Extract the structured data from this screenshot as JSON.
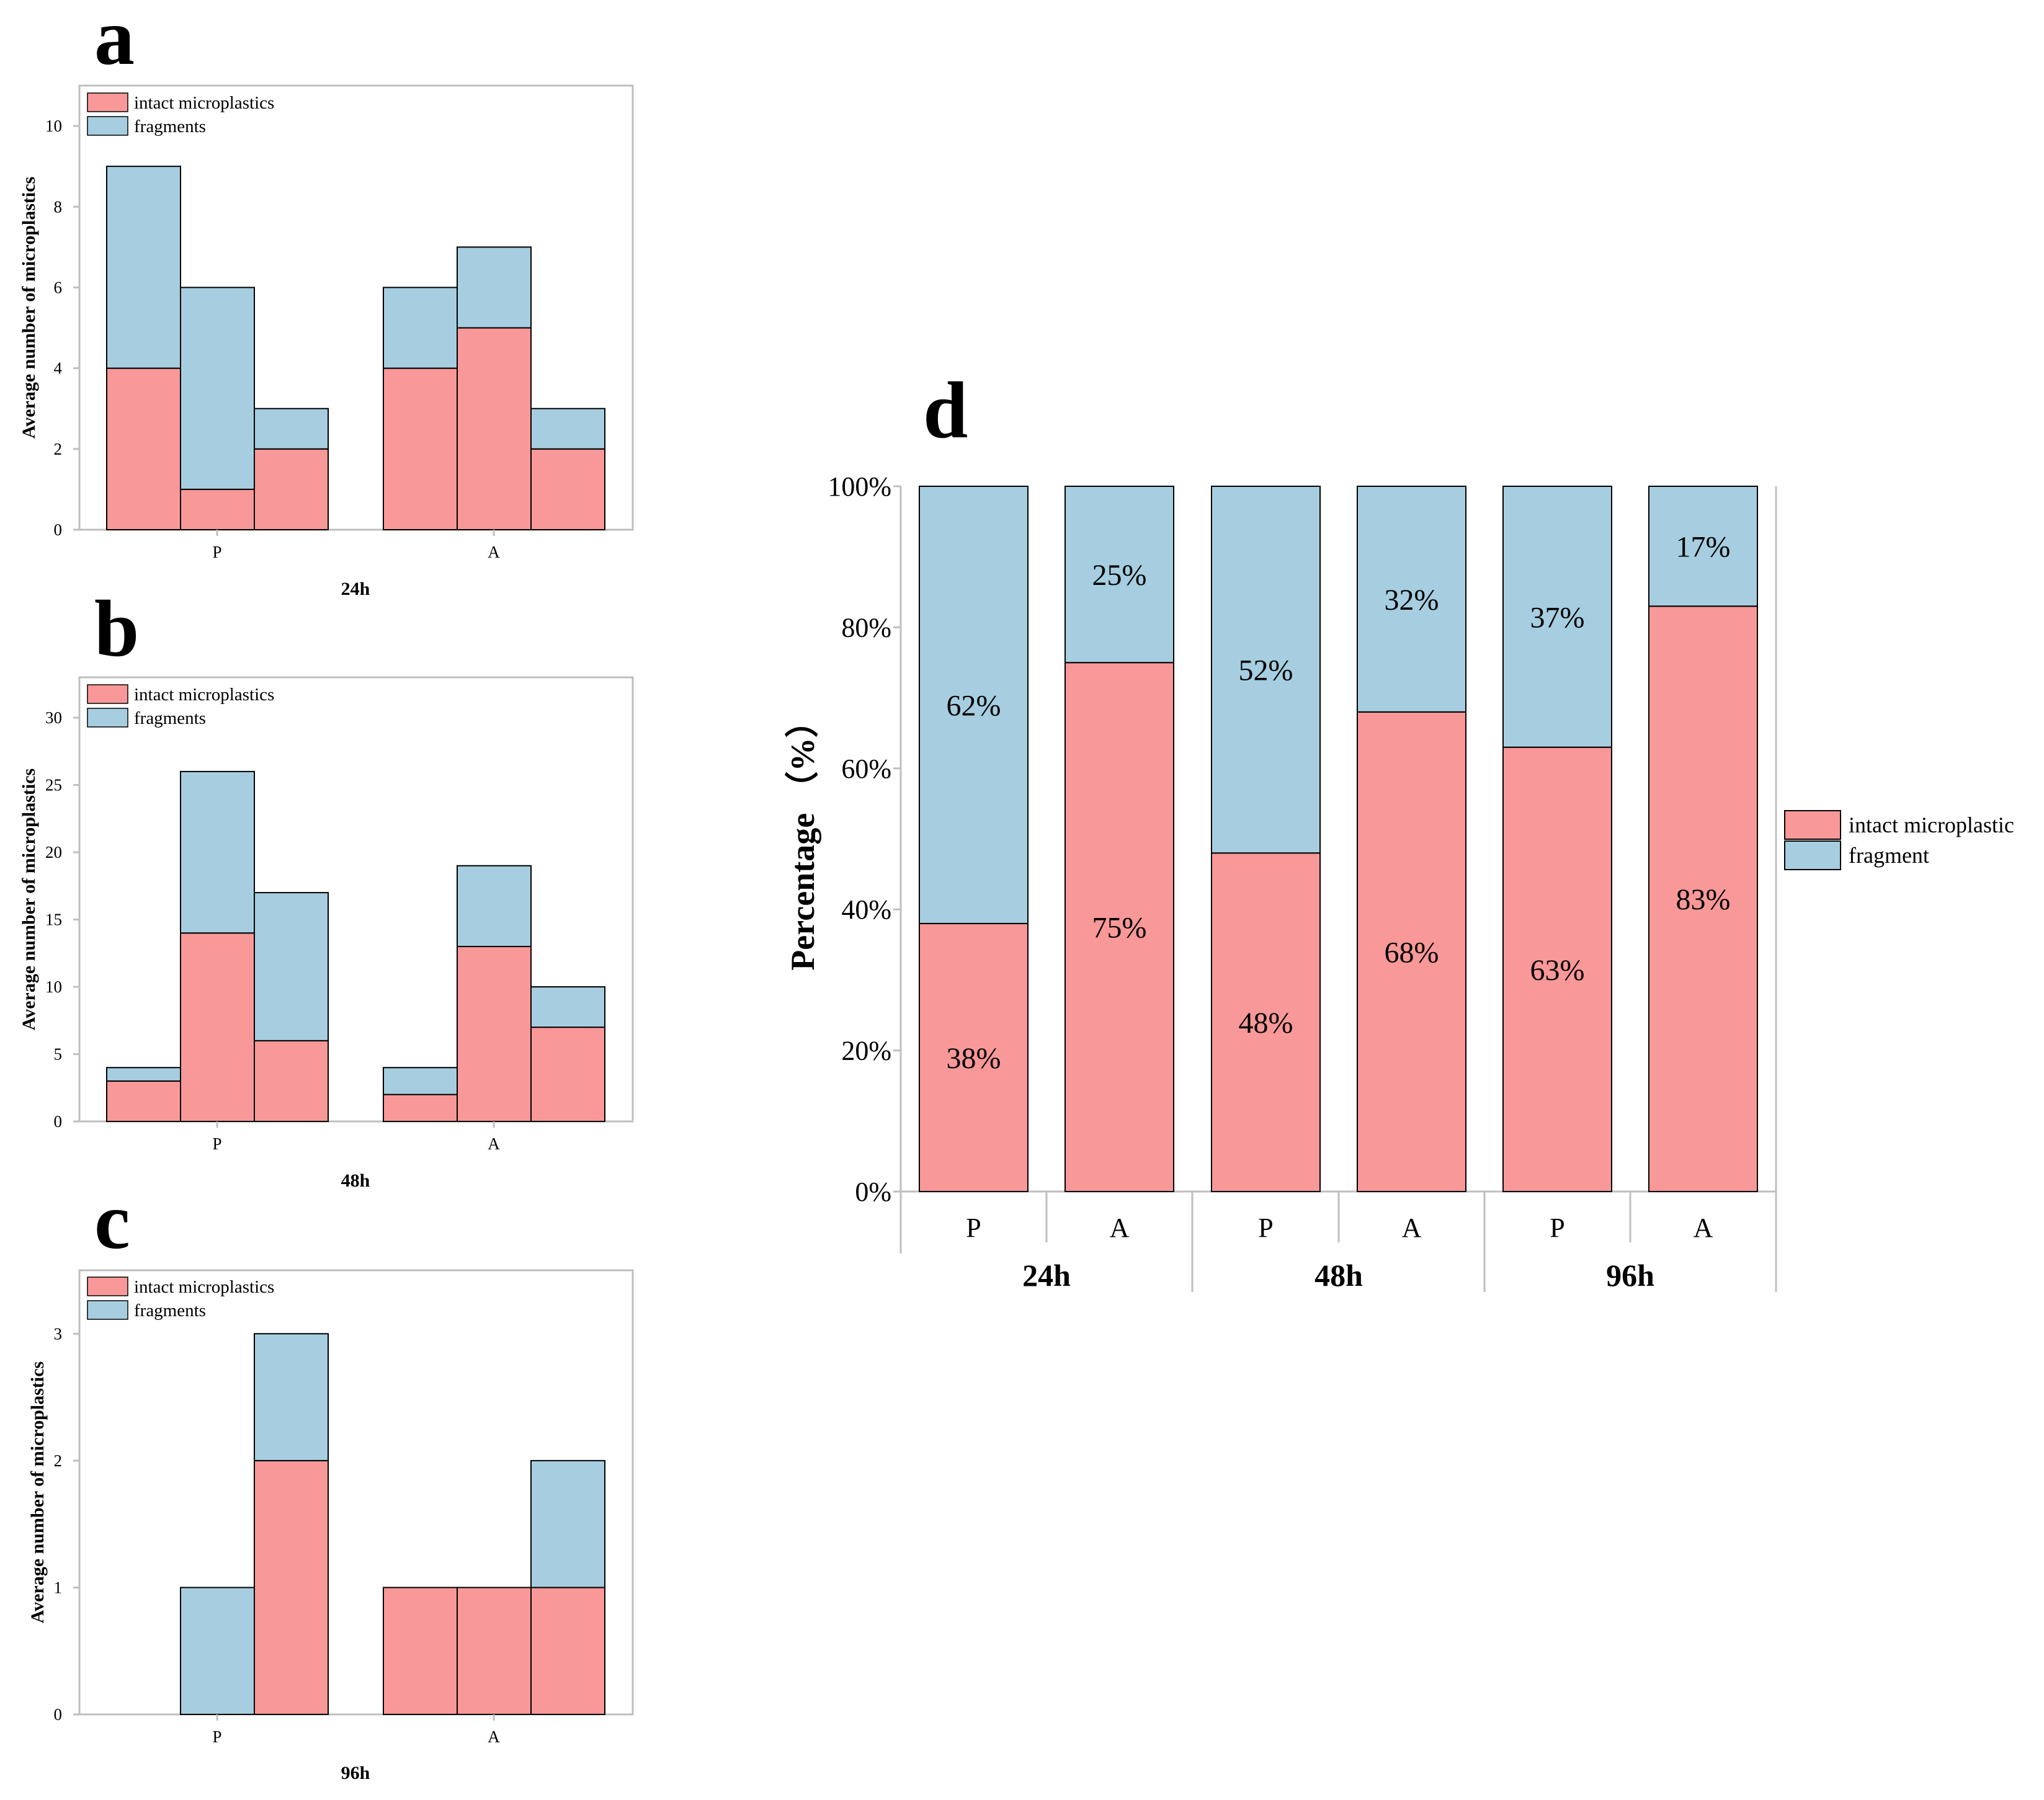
{
  "colors": {
    "intact": "#F99898",
    "fragment": "#A6CEE0",
    "stroke": "#000000",
    "frame": "#BFBFBF"
  },
  "chart_data": [
    {
      "panel": "a",
      "type": "bar",
      "stacked": true,
      "groups": [
        "P",
        "A"
      ],
      "bars_per_group": 3,
      "xlabel": "24h",
      "ylabel": "Average number of microplastics",
      "ylim": [
        0,
        11
      ],
      "yticks": [
        0,
        2,
        4,
        6,
        8,
        10
      ],
      "legend": [
        "intact microplastics",
        "fragments"
      ],
      "series": [
        {
          "name": "intact microplastics",
          "values": [
            4,
            1,
            2,
            4,
            5,
            2
          ]
        },
        {
          "name": "fragments",
          "values": [
            5,
            5,
            1,
            2,
            2,
            1
          ]
        }
      ]
    },
    {
      "panel": "b",
      "type": "bar",
      "stacked": true,
      "groups": [
        "P",
        "A"
      ],
      "bars_per_group": 3,
      "xlabel": "48h",
      "ylabel": "Average number of microplastics",
      "ylim": [
        0,
        33
      ],
      "yticks": [
        0,
        5,
        10,
        15,
        20,
        25,
        30
      ],
      "legend": [
        "intact microplastics",
        "fragments"
      ],
      "series": [
        {
          "name": "intact microplastics",
          "values": [
            3,
            14,
            6,
            2,
            13,
            7
          ]
        },
        {
          "name": "fragments",
          "values": [
            1,
            12,
            11,
            2,
            6,
            3
          ]
        }
      ]
    },
    {
      "panel": "c",
      "type": "bar",
      "stacked": true,
      "groups": [
        "P",
        "A"
      ],
      "bars_per_group": 3,
      "xlabel": "96h",
      "ylabel": "Average number of microplastics",
      "ylim": [
        0,
        3.5
      ],
      "yticks": [
        0,
        1,
        2,
        3
      ],
      "legend": [
        "intact microplastics",
        "fragments"
      ],
      "series": [
        {
          "name": "intact microplastics",
          "values": [
            0,
            0,
            2,
            1,
            1,
            1
          ]
        },
        {
          "name": "fragments",
          "values": [
            0,
            1,
            1,
            0,
            0,
            1
          ]
        }
      ]
    },
    {
      "panel": "d",
      "type": "bar",
      "stacked": true,
      "percent": true,
      "categories": [
        "P",
        "A",
        "P",
        "A",
        "P",
        "A"
      ],
      "groups": [
        "24h",
        "48h",
        "96h"
      ],
      "ylabel": "Percentage （%）",
      "ylim": [
        0,
        100
      ],
      "yticks": [
        "0%",
        "20%",
        "40%",
        "60%",
        "80%",
        "100%"
      ],
      "legend": [
        "intact microplastic",
        "fragment"
      ],
      "series": [
        {
          "name": "intact microplastic",
          "values": [
            38,
            75,
            48,
            68,
            63,
            83
          ],
          "labels": [
            "38%",
            "75%",
            "48%",
            "68%",
            "63%",
            "83%"
          ]
        },
        {
          "name": "fragment",
          "values": [
            62,
            25,
            52,
            32,
            37,
            17
          ],
          "labels": [
            "62%",
            "25%",
            "52%",
            "32%",
            "37%",
            "17%"
          ]
        }
      ]
    }
  ]
}
